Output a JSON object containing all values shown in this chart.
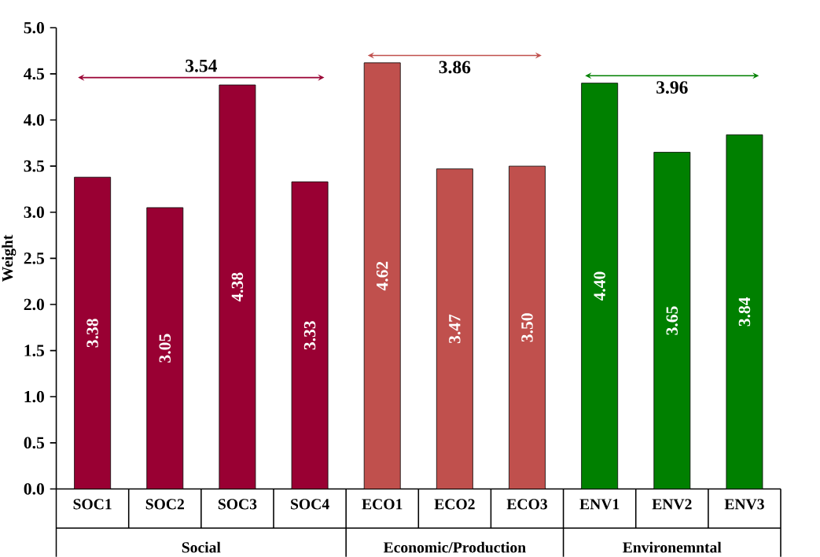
{
  "chart_data": {
    "type": "bar",
    "ylabel": "Weight",
    "categories": [
      "SOC1",
      "SOC2",
      "SOC3",
      "SOC4",
      "ECO1",
      "ECO2",
      "ECO3",
      "ENV1",
      "ENV2",
      "ENV3"
    ],
    "values": [
      3.38,
      3.05,
      4.38,
      3.33,
      4.62,
      3.47,
      3.5,
      4.4,
      3.65,
      3.84
    ],
    "colors": [
      "#990033",
      "#990033",
      "#990033",
      "#990033",
      "#c0504d",
      "#c0504d",
      "#c0504d",
      "#008000",
      "#008000",
      "#008000"
    ],
    "value_labels": [
      "3.38",
      "3.05",
      "4.38",
      "3.33",
      "4.62",
      "3.47",
      "3.50",
      "4.40",
      "3.65",
      "3.84"
    ],
    "annotations": [
      "3.54",
      "3.86",
      "3.96",
      "Social",
      "Economic/Production",
      "Environemntal"
    ],
    "ylim": [
      0,
      5
    ],
    "yticks": [
      {
        "value": 0,
        "label": "0.0"
      },
      {
        "value": 0.5,
        "label": "0.5"
      },
      {
        "value": 1,
        "label": "1.0"
      },
      {
        "value": 1.5,
        "label": "1.5"
      },
      {
        "value": 2,
        "label": "2.0"
      },
      {
        "value": 2.5,
        "label": "2.5"
      },
      {
        "value": 3,
        "label": "3.0"
      },
      {
        "value": 3.5,
        "label": "3.5"
      },
      {
        "value": 4,
        "label": "4.0"
      },
      {
        "value": 4.5,
        "label": "4.5"
      },
      {
        "value": 5,
        "label": "5.0"
      }
    ]
  }
}
